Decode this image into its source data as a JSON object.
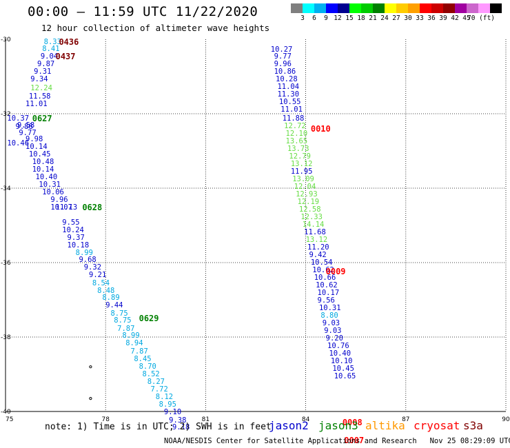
{
  "title": "00:00 – 11:59 UTC 11/22/2020",
  "subtitle": "12 hour collection of altimeter wave heights",
  "colorbar": {
    "colors": [
      "#7f7f7f",
      "#00ffff",
      "#00b0f0",
      "#0000ff",
      "#000090",
      "#00ff00",
      "#00cc00",
      "#008000",
      "#ffff00",
      "#ffcc00",
      "#ffa000",
      "#ff0000",
      "#cc0000",
      "#900000",
      "#a000a0",
      "#cc66cc",
      "#ff99ff",
      "#000000"
    ],
    "labels": [
      "3",
      "6",
      "9",
      "12",
      "15",
      "18",
      "21",
      "24",
      "27",
      "30",
      "33",
      "36",
      "39",
      "42",
      "45",
      "70 (ft)"
    ]
  },
  "map": {
    "lon_range": [
      75,
      90
    ],
    "lat_range": [
      -30,
      -40
    ],
    "lon_ticks": [
      "75",
      "78",
      "81",
      "84",
      "87",
      "90"
    ],
    "lat_ticks": [
      "-30",
      "-32",
      "-34",
      "-36",
      "-38",
      "-40"
    ],
    "colors": {
      "blue": "#0000cc",
      "cyan": "#00a8e0",
      "green": "#66dd44",
      "darkgreen": "#008000",
      "darkred": "#800000",
      "red": "#ff0000"
    },
    "tracks": [
      {
        "name": "west-track",
        "labels": [
          {
            "text": "0436",
            "lon": 76.6,
            "lat": -30.09,
            "color": "darkred"
          },
          {
            "text": "0437",
            "lon": 76.5,
            "lat": -30.48,
            "color": "darkred"
          },
          {
            "text": "0627",
            "lon": 75.8,
            "lat": -32.15,
            "color": "darkgreen"
          },
          {
            "text": "0628",
            "lon": 77.3,
            "lat": -34.54,
            "color": "darkgreen"
          },
          {
            "text": "0629",
            "lon": 79.0,
            "lat": -37.51,
            "color": "darkgreen"
          }
        ],
        "points": [
          {
            "v": "8.33",
            "lon": 76.15,
            "lat": -30.09,
            "color": "cyan"
          },
          {
            "v": "8.41",
            "lon": 76.1,
            "lat": -30.28,
            "color": "cyan"
          },
          {
            "v": "9.04",
            "lon": 76.05,
            "lat": -30.48,
            "color": "blue"
          },
          {
            "v": "9.87",
            "lon": 75.95,
            "lat": -30.69,
            "color": "blue"
          },
          {
            "v": "9.31",
            "lon": 75.85,
            "lat": -30.89,
            "color": "blue"
          },
          {
            "v": "9.34",
            "lon": 75.75,
            "lat": -31.09,
            "color": "blue"
          },
          {
            "v": "12.24",
            "lon": 75.75,
            "lat": -31.33,
            "color": "green"
          },
          {
            "v": "11.58",
            "lon": 75.7,
            "lat": -31.55,
            "color": "blue"
          },
          {
            "v": "11.01",
            "lon": 75.6,
            "lat": -31.76,
            "color": "blue"
          },
          {
            "v": "10.37",
            "lon": 75.05,
            "lat": -32.15,
            "color": "blue"
          },
          {
            "v": "9.58",
            "lon": 75.35,
            "lat": -32.33,
            "color": "blue"
          },
          {
            "v": "9.88",
            "lon": 75.3,
            "lat": -32.37,
            "color": "blue"
          },
          {
            "v": "9.77",
            "lon": 75.4,
            "lat": -32.53,
            "color": "blue"
          },
          {
            "v": "9.98",
            "lon": 75.6,
            "lat": -32.71,
            "color": "blue"
          },
          {
            "v": "10.46",
            "lon": 75.05,
            "lat": -32.81,
            "color": "blue"
          },
          {
            "v": "10.14",
            "lon": 75.6,
            "lat": -32.91,
            "color": "blue"
          },
          {
            "v": "10.45",
            "lon": 75.7,
            "lat": -33.11,
            "color": "blue"
          },
          {
            "v": "10.48",
            "lon": 75.8,
            "lat": -33.31,
            "color": "blue"
          },
          {
            "v": "10.14",
            "lon": 75.8,
            "lat": -33.52,
            "color": "blue"
          },
          {
            "v": "10.40",
            "lon": 75.9,
            "lat": -33.72,
            "color": "blue"
          },
          {
            "v": "10.31",
            "lon": 76.0,
            "lat": -33.92,
            "color": "blue"
          },
          {
            "v": "10.06",
            "lon": 76.1,
            "lat": -34.13,
            "color": "blue"
          },
          {
            "v": "9.96",
            "lon": 76.35,
            "lat": -34.33,
            "color": "blue"
          },
          {
            "v": "10.07",
            "lon": 76.35,
            "lat": -34.54,
            "color": "blue"
          },
          {
            "v": "11.13",
            "lon": 76.5,
            "lat": -34.54,
            "color": "blue"
          },
          {
            "v": "9.55",
            "lon": 76.7,
            "lat": -34.94,
            "color": "blue"
          },
          {
            "v": "10.24",
            "lon": 76.7,
            "lat": -35.14,
            "color": "blue"
          },
          {
            "v": "9.37",
            "lon": 76.85,
            "lat": -35.35,
            "color": "blue"
          },
          {
            "v": "10.18",
            "lon": 76.85,
            "lat": -35.55,
            "color": "blue"
          },
          {
            "v": "8.99",
            "lon": 77.1,
            "lat": -35.75,
            "color": "cyan"
          },
          {
            "v": "9.68",
            "lon": 77.2,
            "lat": -35.95,
            "color": "blue"
          },
          {
            "v": "9.32",
            "lon": 77.35,
            "lat": -36.15,
            "color": "blue"
          },
          {
            "v": "9.21",
            "lon": 77.5,
            "lat": -36.36,
            "color": "blue"
          },
          {
            "v": "8.54",
            "lon": 77.6,
            "lat": -36.57,
            "color": "cyan"
          },
          {
            "v": "8.48",
            "lon": 77.75,
            "lat": -36.77,
            "color": "cyan"
          },
          {
            "v": "8.89",
            "lon": 77.9,
            "lat": -36.97,
            "color": "cyan"
          },
          {
            "v": "9.44",
            "lon": 78.0,
            "lat": -37.17,
            "color": "blue"
          },
          {
            "v": "8.75",
            "lon": 78.15,
            "lat": -37.39,
            "color": "cyan"
          },
          {
            "v": "8.75",
            "lon": 78.25,
            "lat": -37.58,
            "color": "cyan"
          },
          {
            "v": "7.87",
            "lon": 78.35,
            "lat": -37.79,
            "color": "cyan"
          },
          {
            "v": "8.99",
            "lon": 78.5,
            "lat": -37.99,
            "color": "cyan"
          },
          {
            "v": "8.94",
            "lon": 78.6,
            "lat": -38.19,
            "color": "cyan"
          },
          {
            "v": "7.87",
            "lon": 78.75,
            "lat": -38.4,
            "color": "cyan"
          },
          {
            "v": "8.45",
            "lon": 78.85,
            "lat": -38.61,
            "color": "cyan"
          },
          {
            "v": "8.70",
            "lon": 79.0,
            "lat": -38.81,
            "color": "cyan"
          },
          {
            "v": "8.52",
            "lon": 79.1,
            "lat": -39.01,
            "color": "cyan"
          },
          {
            "v": "8.27",
            "lon": 79.25,
            "lat": -39.22,
            "color": "cyan"
          },
          {
            "v": "7.72",
            "lon": 79.35,
            "lat": -39.43,
            "color": "cyan"
          },
          {
            "v": "8.12",
            "lon": 79.5,
            "lat": -39.63,
            "color": "cyan"
          },
          {
            "v": "8.95",
            "lon": 79.6,
            "lat": -39.83,
            "color": "cyan"
          },
          {
            "v": "9.10",
            "lon": 79.75,
            "lat": -40.04,
            "color": "blue"
          },
          {
            "v": "9.38",
            "lon": 79.9,
            "lat": -40.25,
            "color": "blue"
          },
          {
            "v": "9.18",
            "lon": 80.0,
            "lat": -40.45,
            "color": "blue"
          }
        ]
      },
      {
        "name": "east-track",
        "labels": [
          {
            "text": "0010",
            "lon": 84.15,
            "lat": -32.42,
            "color": "red"
          },
          {
            "text": "0009",
            "lon": 84.6,
            "lat": -36.26,
            "color": "red"
          },
          {
            "text": "0008",
            "lon": 85.1,
            "lat": -40.32,
            "color": "red"
          },
          {
            "text": "0007",
            "lon": 85.15,
            "lat": -40.8,
            "color": "red"
          }
        ],
        "points": [
          {
            "v": "10.27",
            "lon": 82.95,
            "lat": -30.29,
            "color": "blue"
          },
          {
            "v": "9.77",
            "lon": 83.05,
            "lat": -30.48,
            "color": "blue"
          },
          {
            "v": "9.96",
            "lon": 83.05,
            "lat": -30.69,
            "color": "blue"
          },
          {
            "v": "10.86",
            "lon": 83.05,
            "lat": -30.89,
            "color": "blue"
          },
          {
            "v": "10.28",
            "lon": 83.1,
            "lat": -31.09,
            "color": "blue"
          },
          {
            "v": "11.04",
            "lon": 83.15,
            "lat": -31.29,
            "color": "blue"
          },
          {
            "v": "11.30",
            "lon": 83.15,
            "lat": -31.5,
            "color": "blue"
          },
          {
            "v": "10.55",
            "lon": 83.2,
            "lat": -31.7,
            "color": "blue"
          },
          {
            "v": "11.01",
            "lon": 83.25,
            "lat": -31.91,
            "color": "blue"
          },
          {
            "v": "11.88",
            "lon": 83.3,
            "lat": -32.15,
            "color": "blue"
          },
          {
            "v": "12.72",
            "lon": 83.35,
            "lat": -32.35,
            "color": "green"
          },
          {
            "v": "12.10",
            "lon": 83.4,
            "lat": -32.56,
            "color": "green"
          },
          {
            "v": "13.65",
            "lon": 83.4,
            "lat": -32.76,
            "color": "green"
          },
          {
            "v": "13.73",
            "lon": 83.45,
            "lat": -32.96,
            "color": "green"
          },
          {
            "v": "12.79",
            "lon": 83.5,
            "lat": -33.17,
            "color": "green"
          },
          {
            "v": "13.12",
            "lon": 83.55,
            "lat": -33.37,
            "color": "green"
          },
          {
            "v": "11.95",
            "lon": 83.55,
            "lat": -33.57,
            "color": "blue"
          },
          {
            "v": "13.09",
            "lon": 83.6,
            "lat": -33.77,
            "color": "green"
          },
          {
            "v": "12.04",
            "lon": 83.65,
            "lat": -33.98,
            "color": "green"
          },
          {
            "v": "12.93",
            "lon": 83.7,
            "lat": -34.19,
            "color": "green"
          },
          {
            "v": "12.19",
            "lon": 83.75,
            "lat": -34.39,
            "color": "green"
          },
          {
            "v": "12.58",
            "lon": 83.8,
            "lat": -34.59,
            "color": "green"
          },
          {
            "v": "12.33",
            "lon": 83.85,
            "lat": -34.8,
            "color": "green"
          },
          {
            "v": "14.14",
            "lon": 83.9,
            "lat": -35.0,
            "color": "green"
          },
          {
            "v": "11.68",
            "lon": 83.95,
            "lat": -35.2,
            "color": "blue"
          },
          {
            "v": "13.12",
            "lon": 84.0,
            "lat": -35.4,
            "color": "green"
          },
          {
            "v": "11.20",
            "lon": 84.05,
            "lat": -35.61,
            "color": "blue"
          },
          {
            "v": "9.42",
            "lon": 84.1,
            "lat": -35.82,
            "color": "blue"
          },
          {
            "v": "10.54",
            "lon": 84.15,
            "lat": -36.02,
            "color": "blue"
          },
          {
            "v": "10.62",
            "lon": 84.2,
            "lat": -36.22,
            "color": "blue"
          },
          {
            "v": "10.66",
            "lon": 84.25,
            "lat": -36.43,
            "color": "blue"
          },
          {
            "v": "10.62",
            "lon": 84.3,
            "lat": -36.63,
            "color": "blue"
          },
          {
            "v": "10.17",
            "lon": 84.35,
            "lat": -36.84,
            "color": "blue"
          },
          {
            "v": "9.56",
            "lon": 84.35,
            "lat": -37.04,
            "color": "blue"
          },
          {
            "v": "10.31",
            "lon": 84.4,
            "lat": -37.24,
            "color": "blue"
          },
          {
            "v": "8.80",
            "lon": 84.45,
            "lat": -37.45,
            "color": "cyan"
          },
          {
            "v": "9.03",
            "lon": 84.5,
            "lat": -37.65,
            "color": "blue"
          },
          {
            "v": "9.03",
            "lon": 84.55,
            "lat": -37.85,
            "color": "blue"
          },
          {
            "v": "9.20",
            "lon": 84.6,
            "lat": -38.06,
            "color": "blue"
          },
          {
            "v": "10.76",
            "lon": 84.65,
            "lat": -38.26,
            "color": "blue"
          },
          {
            "v": "10.40",
            "lon": 84.7,
            "lat": -38.47,
            "color": "blue"
          },
          {
            "v": "10.10",
            "lon": 84.75,
            "lat": -38.67,
            "color": "blue"
          },
          {
            "v": "10.45",
            "lon": 84.8,
            "lat": -38.87,
            "color": "blue"
          },
          {
            "v": "10.65",
            "lon": 84.85,
            "lat": -39.08,
            "color": "blue"
          }
        ]
      }
    ],
    "islands": [
      {
        "lon": 77.55,
        "lat": -38.8
      },
      {
        "lon": 77.55,
        "lat": -39.65
      }
    ]
  },
  "note": "note: 1) Time is in UTC; 2) SWH is in feet",
  "satellites": [
    {
      "name": "jason2",
      "color": "#0000cc"
    },
    {
      "name": "jason3",
      "color": "#008000"
    },
    {
      "name": "altika",
      "color": "#ff9900"
    },
    {
      "name": "cryosat",
      "color": "#ff0000"
    },
    {
      "name": "s3a",
      "color": "#800000"
    }
  ],
  "footer": "NOAA/NESDIS Center for Satellite Applications and Research   Nov 25 08:29:09 UTC 2020"
}
